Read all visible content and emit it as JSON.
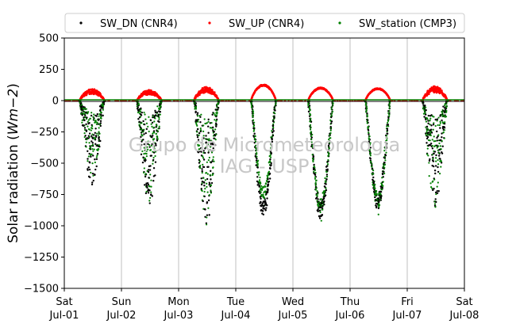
{
  "chart_data": {
    "type": "scatter",
    "title": "",
    "xlabel": "",
    "ylabel": "Solar radiation",
    "ylabel_unit": "Wm−2",
    "ylim": [
      -1500,
      500
    ],
    "yticks": [
      500,
      250,
      0,
      -250,
      -500,
      -750,
      -1000,
      -1250,
      -1500
    ],
    "ytick_labels": [
      "500",
      "250",
      "0",
      "−250",
      "−500",
      "−750",
      "−1000",
      "−1250",
      "−1500"
    ],
    "xlim": [
      "2023-07-01",
      "2023-07-08"
    ],
    "xticks": [
      {
        "weekday": "Sat",
        "date": "Jul-01"
      },
      {
        "weekday": "Sun",
        "date": "Jul-02"
      },
      {
        "weekday": "Mon",
        "date": "Jul-03"
      },
      {
        "weekday": "Tue",
        "date": "Jul-04"
      },
      {
        "weekday": "Wed",
        "date": "Jul-05"
      },
      {
        "weekday": "Thu",
        "date": "Jul-06"
      },
      {
        "weekday": "Fri",
        "date": "Jul-07"
      },
      {
        "weekday": "Sat",
        "date": "Jul-08"
      }
    ],
    "grid": "vertical",
    "legend_position": "top",
    "watermark": [
      "Grupo de Micrometeorologia",
      "IAG - USP"
    ],
    "series": [
      {
        "name": "SW_DN (CNR4)",
        "color": "#000000",
        "daily_min": [
          -670,
          -820,
          -980,
          -910,
          -940,
          -860,
          -840
        ]
      },
      {
        "name": "SW_UP (CNR4)",
        "color": "#ff0000",
        "daily_max": [
          95,
          85,
          110,
          130,
          105,
          100,
          115
        ]
      },
      {
        "name": "SW_station (CMP3)",
        "color": "#008000",
        "daily_min": [
          -600,
          -800,
          -990,
          -840,
          -960,
          -910,
          -850
        ]
      }
    ]
  }
}
